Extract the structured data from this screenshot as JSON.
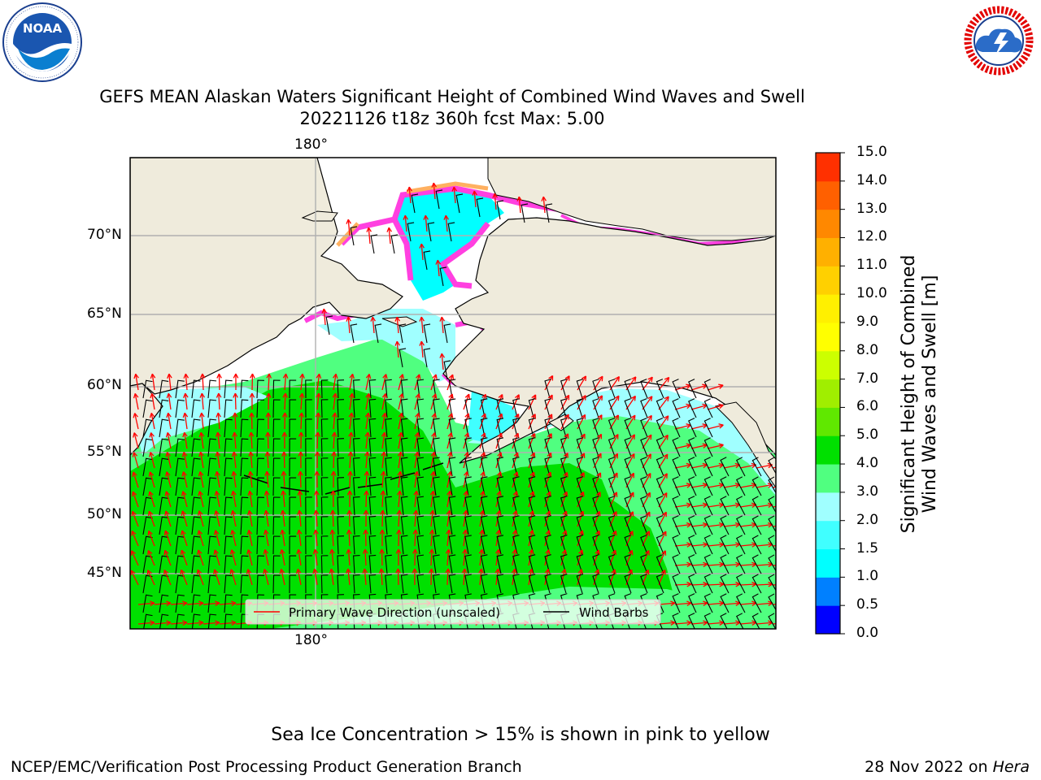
{
  "title": {
    "line1": "GEFS MEAN Alaskan Waters Significant Height of Combined Wind Waves and Swell",
    "line2": "20221126 t18z 360h fcst   Max: 5.00"
  },
  "logos": {
    "left": {
      "name": "NOAA",
      "ring_text": "NATIONAL OCEANIC AND ATMOSPHERIC ADMINISTRATION · U.S. DEPARTMENT OF COMMERCE"
    },
    "right": {
      "name": "NATIONAL WEATHER SERVICE"
    }
  },
  "map": {
    "lon_labels": {
      "top": "180°",
      "bottom": "180°"
    },
    "lat_labels": [
      "70°N",
      "65°N",
      "60°N",
      "55°N",
      "50°N",
      "45°N"
    ],
    "colors": {
      "land": "#efebdc",
      "grid": "#b0b0b0",
      "wave_arrow": "#ff0000",
      "wind_barb": "#000000"
    }
  },
  "legend": {
    "wave_direction": "Primary Wave Direction (unscaled)",
    "wind_barbs": "Wind Barbs"
  },
  "colorbar": {
    "label_line1": "Significant Height of Combined",
    "label_line2": "Wind Waves and Swell [m]",
    "ticks": [
      "0.0",
      "0.5",
      "1.0",
      "1.5",
      "2.0",
      "3.0",
      "4.0",
      "5.0",
      "6.0",
      "7.0",
      "8.0",
      "9.0",
      "10.0",
      "11.0",
      "12.0",
      "13.0",
      "14.0",
      "15.0"
    ],
    "colors": [
      "#0000ff",
      "#0080ff",
      "#00ffff",
      "#40ffff",
      "#a0ffff",
      "#50ff80",
      "#00e000",
      "#60e800",
      "#a0ee00",
      "#ccff00",
      "#ffff00",
      "#fff000",
      "#ffd000",
      "#ffb000",
      "#ff8800",
      "#ff6000",
      "#ff3000",
      "#ff0000"
    ]
  },
  "ice_note": "Sea Ice Concentration > 15% is shown in pink to yellow",
  "footer": {
    "left": "NCEP/EMC/Verification Post Processing Product Generation Branch",
    "date": "28 Nov 2022 on ",
    "machine": "Hera"
  }
}
